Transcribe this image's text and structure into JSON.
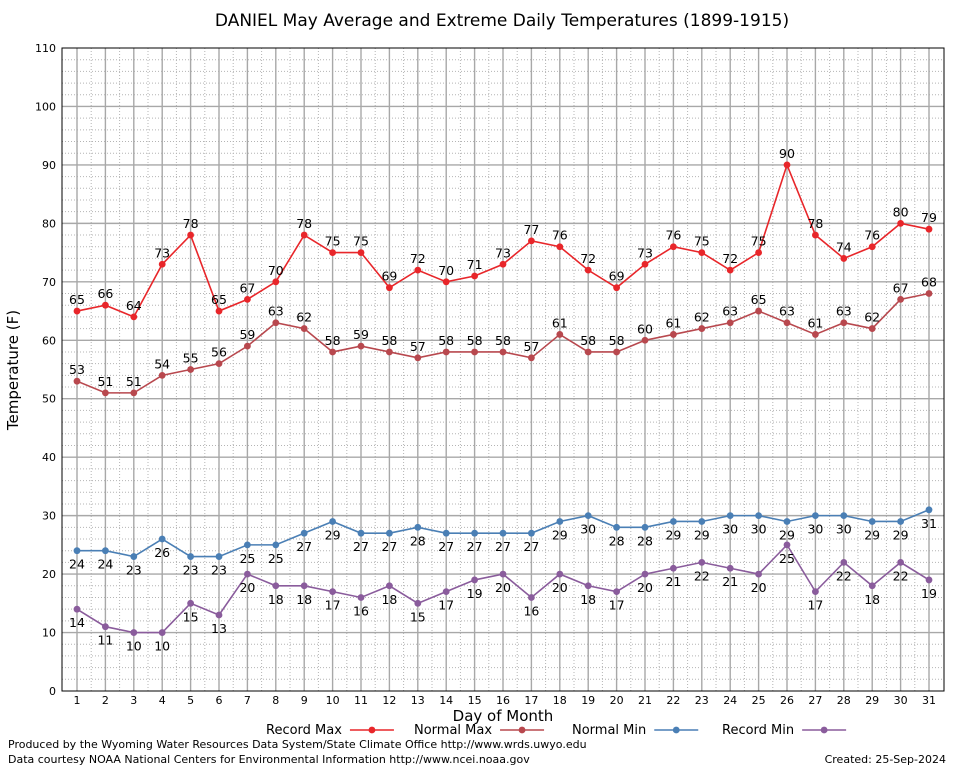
{
  "chart_data": {
    "type": "line",
    "title": "DANIEL May Average and Extreme Daily Temperatures (1899-1915)",
    "xlabel": "Day of Month",
    "ylabel": "Temperature (F)",
    "xlim": [
      1,
      31
    ],
    "ylim": [
      0,
      110
    ],
    "yticks": [
      0,
      10,
      20,
      30,
      40,
      50,
      60,
      70,
      80,
      90,
      100,
      110
    ],
    "grid": true,
    "legend_position": "bottom",
    "x": [
      1,
      2,
      3,
      4,
      5,
      6,
      7,
      8,
      9,
      10,
      11,
      12,
      13,
      14,
      15,
      16,
      17,
      18,
      19,
      20,
      21,
      22,
      23,
      24,
      25,
      26,
      27,
      28,
      29,
      30,
      31
    ],
    "series": [
      {
        "name": "Record Max",
        "color": "#e8262a",
        "values": [
          65,
          66,
          64,
          73,
          78,
          65,
          67,
          70,
          78,
          75,
          75,
          69,
          72,
          70,
          71,
          73,
          77,
          76,
          72,
          69,
          73,
          76,
          75,
          72,
          75,
          90,
          78,
          74,
          76,
          80,
          79
        ]
      },
      {
        "name": "Normal Max",
        "color": "#b8484e",
        "values": [
          53,
          51,
          51,
          54,
          55,
          56,
          59,
          63,
          62,
          58,
          59,
          58,
          57,
          58,
          58,
          58,
          57,
          61,
          58,
          58,
          60,
          61,
          62,
          63,
          65,
          63,
          61,
          63,
          62,
          67,
          68
        ]
      },
      {
        "name": "Normal Min",
        "color": "#4a7fb5",
        "values": [
          24,
          24,
          23,
          26,
          23,
          23,
          25,
          25,
          27,
          29,
          27,
          27,
          28,
          27,
          27,
          27,
          27,
          29,
          30,
          28,
          28,
          29,
          29,
          30,
          30,
          29,
          30,
          30,
          29,
          29,
          31
        ]
      },
      {
        "name": "Record Min",
        "color": "#8a5c9c",
        "values": [
          14,
          11,
          10,
          10,
          15,
          13,
          20,
          18,
          18,
          17,
          16,
          18,
          15,
          17,
          19,
          20,
          16,
          20,
          18,
          17,
          20,
          21,
          22,
          21,
          20,
          25,
          17,
          22,
          18,
          22,
          19
        ]
      }
    ]
  },
  "footer": {
    "produced_by": "Produced by the Wyoming Water Resources Data System/State Climate Office http://www.wrds.uwyo.edu",
    "courtesy": "Data courtesy NOAA National Centers for Environmental Information http://www.ncei.noaa.gov",
    "created": "Created:  25-Sep-2024"
  }
}
